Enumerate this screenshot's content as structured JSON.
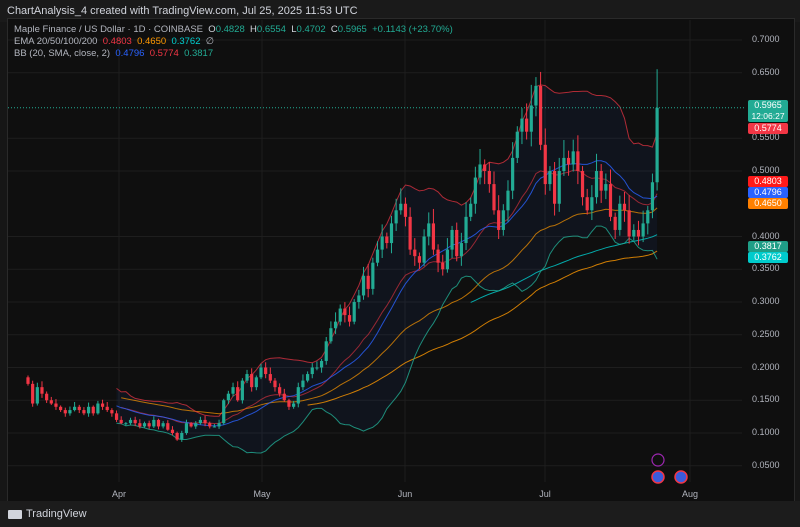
{
  "header": {
    "title": "ChartAnalysis_4 created with TradingView.com, Jul 25, 2025 11:53 UTC"
  },
  "legend": {
    "symbol": "Maple Finance / US Dollar · 1D · COINBASE",
    "o_label": "O",
    "o": "0.4828",
    "h_label": "H",
    "h": "0.6554",
    "l_label": "L",
    "l": "0.4702",
    "c_label": "C",
    "c": "0.5965",
    "change": "+0.1143 (+23.70%)",
    "ema_label": "EMA 20/50/100/200",
    "ema1": "0.4803",
    "ema2": "0.4650",
    "ema3": "0.3762",
    "ema_icon": "∅",
    "bb_label": "BB (20, SMA, close, 2)",
    "bb_basis": "0.4796",
    "bb_upper": "0.5774",
    "bb_lower": "0.3817"
  },
  "price_tags": {
    "last": "0.5965",
    "countdown": "12:06:27",
    "bb_upper": "0.5774",
    "ema20": "0.4803",
    "bb_basis": "0.4796",
    "ema50": "0.4650",
    "bb_lower": "0.3817",
    "ema200": "0.3762"
  },
  "colors": {
    "up": "#22ab94",
    "down": "#f23645",
    "bb_basis": "#2962ff",
    "bb_upper": "#f23645",
    "bb_lower": "#22ab94",
    "ema20": "#f23645",
    "ema50": "#ff9800",
    "ema200": "#00d0d0",
    "background": "#0f0f0f"
  },
  "footer": {
    "brand": "TradingView"
  },
  "chart_data": {
    "type": "candlestick",
    "title": "Maple Finance / US Dollar · 1D · COINBASE",
    "price_axis": [
      "0.7000",
      "0.6500",
      "0.5500",
      "0.5000",
      "0.4000",
      "0.3500",
      "0.3000",
      "0.2500",
      "0.2000",
      "0.1500",
      "0.1000",
      "0.0500"
    ],
    "ylim": [
      0.03,
      0.72
    ],
    "time_axis": [
      "Apr",
      "May",
      "Jun",
      "Jul",
      "Aug"
    ],
    "xlim": [
      "2025-03-07",
      "2025-08-08"
    ],
    "first_date": "2025-03-12",
    "last_date": "2025-07-25",
    "grid": true,
    "closes": [
      0.175,
      0.145,
      0.17,
      0.16,
      0.15,
      0.145,
      0.14,
      0.135,
      0.13,
      0.135,
      0.14,
      0.135,
      0.13,
      0.14,
      0.13,
      0.145,
      0.14,
      0.135,
      0.13,
      0.12,
      0.115,
      0.115,
      0.12,
      0.115,
      0.11,
      0.115,
      0.11,
      0.12,
      0.11,
      0.115,
      0.105,
      0.1,
      0.09,
      0.1,
      0.115,
      0.11,
      0.115,
      0.12,
      0.115,
      0.11,
      0.11,
      0.115,
      0.15,
      0.16,
      0.17,
      0.15,
      0.18,
      0.19,
      0.17,
      0.185,
      0.2,
      0.19,
      0.18,
      0.17,
      0.16,
      0.15,
      0.14,
      0.145,
      0.17,
      0.18,
      0.19,
      0.2,
      0.2,
      0.21,
      0.24,
      0.26,
      0.27,
      0.29,
      0.28,
      0.27,
      0.3,
      0.31,
      0.34,
      0.32,
      0.36,
      0.38,
      0.4,
      0.39,
      0.42,
      0.44,
      0.45,
      0.43,
      0.38,
      0.37,
      0.36,
      0.4,
      0.42,
      0.38,
      0.36,
      0.35,
      0.38,
      0.41,
      0.37,
      0.39,
      0.43,
      0.45,
      0.49,
      0.51,
      0.5,
      0.48,
      0.44,
      0.41,
      0.44,
      0.47,
      0.52,
      0.56,
      0.58,
      0.56,
      0.6,
      0.63,
      0.54,
      0.48,
      0.5,
      0.45,
      0.5,
      0.52,
      0.51,
      0.53,
      0.5,
      0.46,
      0.44,
      0.46,
      0.5,
      0.47,
      0.48,
      0.43,
      0.41,
      0.45,
      0.44,
      0.4,
      0.41,
      0.4,
      0.42,
      0.44,
      0.4828,
      0.5965
    ],
    "last_candle": {
      "date": "2025-07-25",
      "open": 0.4828,
      "high": 0.6554,
      "low": 0.4702,
      "close": 0.5965
    },
    "indicators": [
      "EMA 20",
      "EMA 50",
      "EMA 100",
      "EMA 200",
      "BB (20, SMA, close, 2)"
    ]
  }
}
